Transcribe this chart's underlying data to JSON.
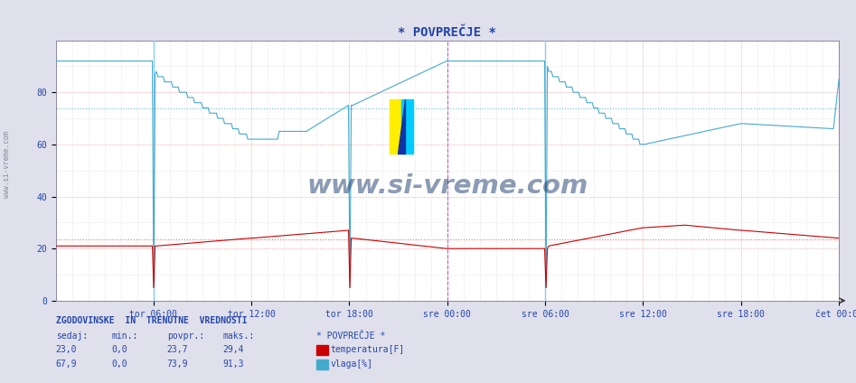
{
  "title": "* POVPREČJE *",
  "bg_color": "#e0e0ec",
  "plot_bg_color": "#ffffff",
  "x_labels": [
    "tor 06:00",
    "tor 12:00",
    "tor 18:00",
    "sre 00:00",
    "sre 06:00",
    "sre 12:00",
    "sre 18:00",
    "čet 00:00"
  ],
  "ylim": [
    0,
    100
  ],
  "yticks": [
    0,
    20,
    40,
    60,
    80
  ],
  "temp_color": "#cc0000",
  "hum_color": "#44aacc",
  "temp_avg_line": 23.7,
  "hum_avg_line": 73.9,
  "watermark": "www.si-vreme.com",
  "watermark_color": "#1a3a6a",
  "footer_title": "ZGODOVINSKE  IN  TRENUTNE  VREDNOSTI",
  "footer_headers": [
    "sedaj:",
    "min.:",
    "povpr.:",
    "maks.:",
    "* POVPREČJE *"
  ],
  "footer_temp": [
    "23,0",
    "0,0",
    "23,7",
    "29,4",
    "temperatura[F]"
  ],
  "footer_hum": [
    "67,9",
    "0,0",
    "73,9",
    "91,3",
    "vlaga[%]"
  ],
  "temp_color_label": "#cc0000",
  "hum_color_label": "#44aacc",
  "ylabel_left": "www.si-vreme.com",
  "n_points": 576
}
